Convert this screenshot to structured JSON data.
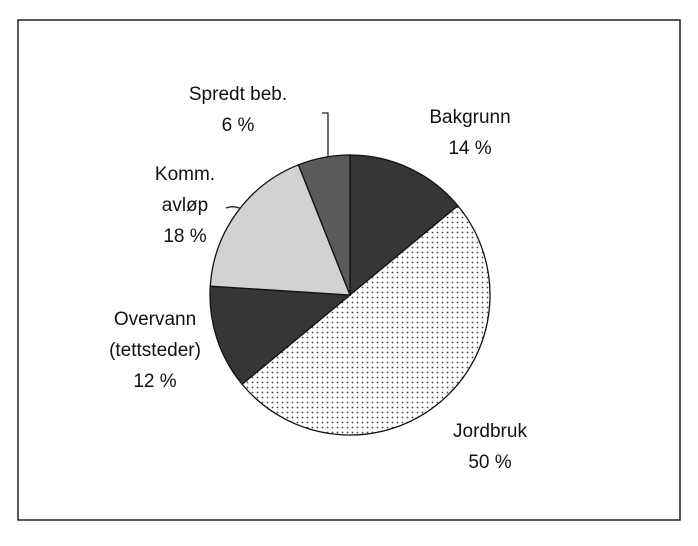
{
  "chart_data": {
    "type": "pie",
    "categories": [
      "Bakgrunn",
      "Jordbruk",
      "Overvann\n(tettsteder)",
      "Komm.\navløp",
      "Spredt beb."
    ],
    "values": [
      14,
      50,
      12,
      18,
      6
    ],
    "value_labels": [
      "14 %",
      "50 %",
      "12 %",
      "18 %",
      "6 %"
    ],
    "colors": [
      "#363636",
      "#ffffff",
      "#363636",
      "#d2d2d2",
      "#5a5a5a"
    ],
    "patterns": [
      "solid",
      "dots",
      "solid",
      "solid",
      "solid"
    ]
  }
}
